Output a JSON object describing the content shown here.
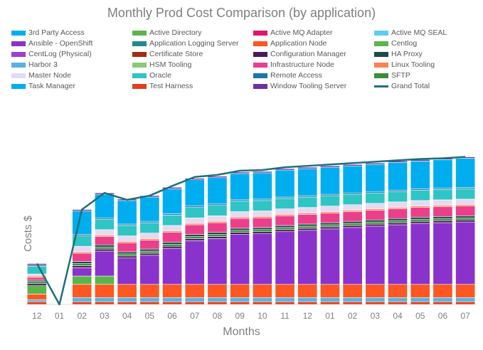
{
  "chart_data": {
    "type": "bar",
    "stacked": true,
    "title": "Monthly Prod Cost Comparison (by application)",
    "xlabel": "Months",
    "ylabel": "Costs $",
    "ylim": [
      0,
      270
    ],
    "grid": false,
    "legend_position": "top",
    "categories": [
      "12",
      "01",
      "02",
      "03",
      "04",
      "05",
      "06",
      "07",
      "08",
      "09",
      "10",
      "11",
      "12",
      "01",
      "02",
      "03",
      "04",
      "05",
      "06",
      "07"
    ],
    "series": [
      {
        "name": "Test Harness",
        "color": "#e0401c",
        "values": [
          4,
          0,
          4,
          4,
          4,
          4,
          4,
          4,
          4,
          4,
          4,
          4,
          4,
          4,
          4,
          4,
          4,
          4,
          4,
          4
        ]
      },
      {
        "name": "Harbor 3",
        "color": "#5ab0e0",
        "values": [
          3,
          0,
          6,
          6,
          6,
          6,
          6,
          6,
          6,
          6,
          6,
          6,
          6,
          6,
          6,
          6,
          6,
          6,
          6,
          6
        ]
      },
      {
        "name": "Application Node",
        "color": "#fe5721",
        "values": [
          8,
          0,
          19,
          19,
          19,
          19,
          19,
          19,
          19,
          19,
          19,
          19,
          19,
          19,
          19,
          19,
          19,
          19,
          19,
          19
        ]
      },
      {
        "name": "Active Directory",
        "color": "#5cb548",
        "values": [
          12,
          0,
          12,
          12,
          0,
          0,
          0,
          0,
          0,
          0,
          0,
          0,
          0,
          0,
          0,
          0,
          0,
          0,
          0,
          0
        ]
      },
      {
        "name": "Ansible - OpenShift",
        "color": "#8933cc",
        "values": [
          0,
          0,
          12,
          36,
          38,
          42,
          52,
          63,
          66,
          72,
          73,
          76,
          78,
          80,
          82,
          84,
          86,
          88,
          89,
          90
        ]
      },
      {
        "name": "Configuration Manager",
        "color": "#4a1a5c",
        "values": [
          3,
          0,
          3,
          3,
          3,
          3,
          3,
          3,
          3,
          3,
          3,
          3,
          3,
          3,
          3,
          3,
          3,
          3,
          3,
          3
        ]
      },
      {
        "name": "SFTP",
        "color": "#3b8c3b",
        "values": [
          3,
          0,
          3,
          3,
          3,
          3,
          3,
          3,
          3,
          3,
          3,
          3,
          3,
          3,
          3,
          3,
          3,
          3,
          3,
          3
        ]
      },
      {
        "name": "HA Proxy",
        "color": "#1d4a4a",
        "values": [
          2,
          0,
          3,
          3,
          3,
          3,
          3,
          3,
          3,
          3,
          3,
          3,
          3,
          3,
          3,
          3,
          3,
          3,
          3,
          3
        ]
      },
      {
        "name": "Infrastructure Node",
        "color": "#eb3f8c",
        "values": [
          4,
          0,
          12,
          12,
          13,
          13,
          14,
          14,
          14,
          14,
          14,
          14,
          14,
          14,
          14,
          14,
          14,
          14,
          14,
          14
        ]
      },
      {
        "name": "Linux Tooling",
        "color": "#fd8050",
        "values": [
          2,
          0,
          2,
          2,
          2,
          2,
          2,
          2,
          2,
          2,
          2,
          2,
          2,
          2,
          2,
          2,
          2,
          2,
          2,
          2
        ]
      },
      {
        "name": "Master Node",
        "color": "#e6d9f2",
        "values": [
          3,
          0,
          8,
          8,
          8,
          8,
          8,
          8,
          8,
          8,
          8,
          8,
          8,
          8,
          8,
          8,
          8,
          8,
          8,
          8
        ]
      },
      {
        "name": "Oracle",
        "color": "#2ec5c4",
        "values": [
          11,
          0,
          15,
          15,
          15,
          15,
          15,
          15,
          15,
          15,
          15,
          15,
          15,
          15,
          15,
          15,
          15,
          15,
          15,
          15
        ]
      },
      {
        "name": "Remote Access",
        "color": "#1b77a7",
        "values": [
          2,
          0,
          2,
          2,
          2,
          2,
          2,
          2,
          2,
          2,
          2,
          2,
          2,
          2,
          2,
          2,
          2,
          2,
          2,
          2
        ]
      },
      {
        "name": "Task Manager",
        "color": "#00aeef",
        "values": [
          0,
          0,
          34,
          34,
          34,
          35,
          36,
          38,
          38,
          38,
          38,
          39,
          39,
          39,
          39,
          39,
          40,
          40,
          41,
          42
        ]
      },
      {
        "name": "Window Tooling Server",
        "color": "#7030a0",
        "values": [
          2,
          0,
          2,
          2,
          2,
          2,
          2,
          2,
          2,
          2,
          2,
          2,
          2,
          2,
          2,
          2,
          2,
          2,
          2,
          2
        ]
      }
    ],
    "grand_total": {
      "name": "Grand Total",
      "color": "#1f6f78",
      "values": [
        59,
        0,
        137,
        161,
        151,
        157,
        171,
        184,
        187,
        193,
        194,
        198,
        200,
        202,
        204,
        206,
        208,
        210,
        211,
        213
      ]
    }
  },
  "legend": [
    {
      "label": "3rd Party Access",
      "color": "#00aeef",
      "kind": "box"
    },
    {
      "label": "Active Directory",
      "color": "#5cb548",
      "kind": "box"
    },
    {
      "label": "Active MQ Adapter",
      "color": "#e0156b",
      "kind": "box"
    },
    {
      "label": "Active MQ SEAL",
      "color": "#5ccdf2",
      "kind": "box"
    },
    {
      "label": "Ansible - OpenShift",
      "color": "#8933cc",
      "kind": "box"
    },
    {
      "label": "Application Logging Server",
      "color": "#1f8a8a",
      "kind": "box"
    },
    {
      "label": "Application Node",
      "color": "#fe5721",
      "kind": "box"
    },
    {
      "label": "Centlog",
      "color": "#5cb548",
      "kind": "box"
    },
    {
      "label": "CentLog (Physical)",
      "color": "#9b3fd6",
      "kind": "box"
    },
    {
      "label": "Certificate Store",
      "color": "#a52a14",
      "kind": "box"
    },
    {
      "label": "Configuration Manager",
      "color": "#4a1a5c",
      "kind": "box"
    },
    {
      "label": "HA Proxy",
      "color": "#1d4a4a",
      "kind": "box"
    },
    {
      "label": "Harbor 3",
      "color": "#5ab0e0",
      "kind": "box"
    },
    {
      "label": "HSM Tooling",
      "color": "#8bc97a",
      "kind": "box"
    },
    {
      "label": "Infrastructure Node",
      "color": "#eb3f8c",
      "kind": "box"
    },
    {
      "label": "Linux Tooling",
      "color": "#fd8050",
      "kind": "box"
    },
    {
      "label": "Master Node",
      "color": "#e6d9f2",
      "kind": "box"
    },
    {
      "label": "Oracle",
      "color": "#2ec5c4",
      "kind": "box"
    },
    {
      "label": "Remote Access",
      "color": "#1b77a7",
      "kind": "box"
    },
    {
      "label": "SFTP",
      "color": "#3b8c3b",
      "kind": "box"
    },
    {
      "label": "Task Manager",
      "color": "#00aeef",
      "kind": "box"
    },
    {
      "label": "Test Harness",
      "color": "#e0401c",
      "kind": "box"
    },
    {
      "label": "Window Tooling Server",
      "color": "#7030a0",
      "kind": "box"
    },
    {
      "label": "Grand Total",
      "color": "#1f6f78",
      "kind": "line"
    }
  ]
}
